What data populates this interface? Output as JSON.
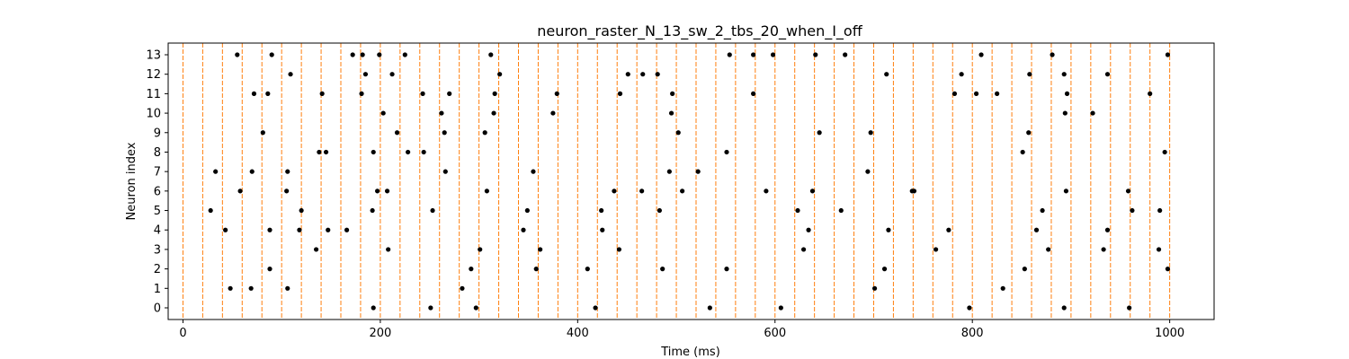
{
  "chart_data": {
    "type": "scatter",
    "title": "neuron_raster_N_13_sw_2_tbs_20_when_I_off",
    "xlabel": "Time (ms)",
    "ylabel": "Neuron index",
    "xlim": [
      -15,
      1045
    ],
    "ylim": [
      -0.6,
      13.6
    ],
    "xticks": [
      0,
      200,
      400,
      600,
      800,
      1000
    ],
    "yticks": [
      0,
      1,
      2,
      3,
      4,
      5,
      6,
      7,
      8,
      9,
      10,
      11,
      12,
      13
    ],
    "grid": false,
    "vlines": {
      "color": "#ff7f0e",
      "style": "dashed",
      "x": [
        0,
        20,
        40,
        60,
        80,
        100,
        120,
        140,
        160,
        180,
        200,
        220,
        240,
        260,
        280,
        300,
        320,
        340,
        360,
        380,
        400,
        420,
        440,
        460,
        480,
        500,
        520,
        540,
        560,
        580,
        600,
        620,
        640,
        660,
        680,
        700,
        720,
        740,
        760,
        780,
        800,
        820,
        840,
        860,
        880,
        900,
        920,
        940,
        960,
        980,
        1000
      ]
    },
    "marker_color": "#000000",
    "spikes": [
      {
        "neuron": 0,
        "times": [
          193,
          251,
          297,
          418,
          534,
          606,
          797,
          893,
          959
        ]
      },
      {
        "neuron": 1,
        "times": [
          48,
          69,
          106,
          283,
          701,
          831
        ]
      },
      {
        "neuron": 2,
        "times": [
          88,
          292,
          358,
          410,
          486,
          551,
          711,
          853,
          998
        ]
      },
      {
        "neuron": 3,
        "times": [
          135,
          208,
          301,
          362,
          442,
          629,
          763,
          877,
          933,
          989
        ]
      },
      {
        "neuron": 4,
        "times": [
          43,
          88,
          118,
          147,
          166,
          345,
          425,
          634,
          715,
          776,
          865,
          937
        ]
      },
      {
        "neuron": 5,
        "times": [
          28,
          120,
          192,
          253,
          349,
          424,
          483,
          623,
          667,
          871,
          962,
          990
        ]
      },
      {
        "neuron": 6,
        "times": [
          58,
          105,
          197,
          207,
          308,
          437,
          465,
          506,
          591,
          638,
          739,
          741,
          895,
          958
        ]
      },
      {
        "neuron": 7,
        "times": [
          33,
          70,
          106,
          266,
          355,
          493,
          522,
          694
        ]
      },
      {
        "neuron": 8,
        "times": [
          138,
          145,
          193,
          228,
          244,
          551,
          851,
          995
        ]
      },
      {
        "neuron": 9,
        "times": [
          81,
          217,
          265,
          306,
          502,
          645,
          697,
          857
        ]
      },
      {
        "neuron": 10,
        "times": [
          203,
          262,
          315,
          375,
          495,
          894,
          922
        ]
      },
      {
        "neuron": 11,
        "times": [
          72,
          86,
          141,
          181,
          243,
          270,
          316,
          379,
          443,
          496,
          578,
          782,
          804,
          825,
          896,
          980
        ]
      },
      {
        "neuron": 12,
        "times": [
          109,
          185,
          212,
          321,
          451,
          466,
          481,
          713,
          789,
          858,
          893,
          937
        ]
      },
      {
        "neuron": 13,
        "times": [
          55,
          90,
          172,
          182,
          199,
          225,
          312,
          554,
          578,
          598,
          641,
          671,
          809,
          881,
          998
        ]
      }
    ]
  }
}
